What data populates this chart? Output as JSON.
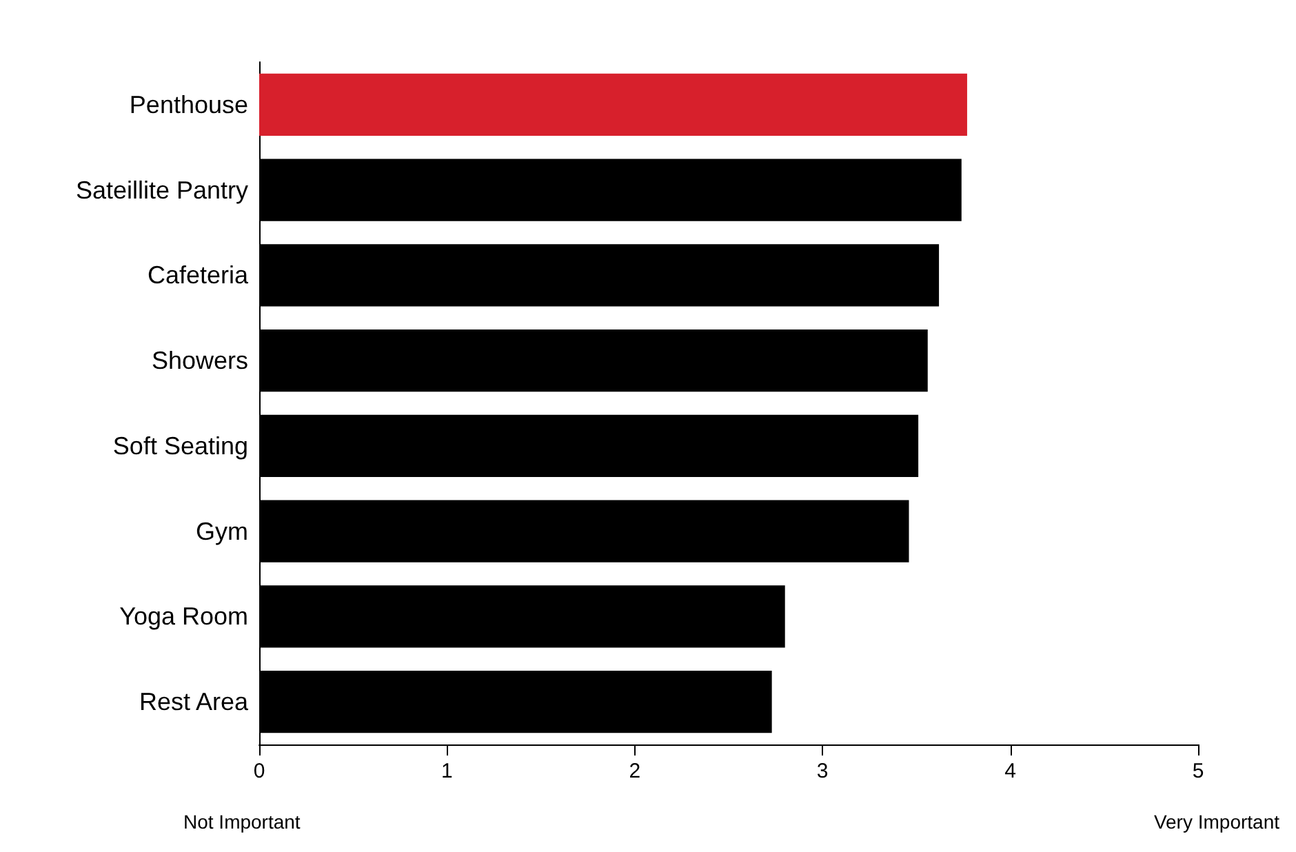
{
  "chart_data": {
    "type": "bar",
    "orientation": "horizontal",
    "categories": [
      "Penthouse",
      "Sateillite Pantry",
      "Cafeteria",
      "Showers",
      "Soft Seating",
      "Gym",
      "Yoga Room",
      "Rest Area"
    ],
    "values": [
      3.77,
      3.74,
      3.62,
      3.56,
      3.51,
      3.46,
      2.8,
      2.73
    ],
    "colors": [
      "#d7202c",
      "#000000",
      "#000000",
      "#000000",
      "#000000",
      "#000000",
      "#000000",
      "#000000"
    ],
    "xlim": [
      0,
      5
    ],
    "xticks": [
      0,
      1,
      2,
      3,
      4,
      5
    ],
    "grid": false,
    "annotations": [
      "Not Important",
      "Very Important"
    ]
  }
}
